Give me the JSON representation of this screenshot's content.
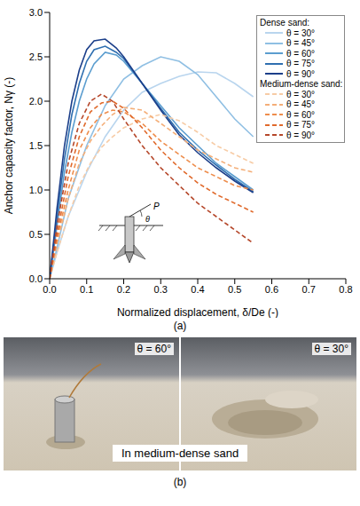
{
  "chart_data": {
    "type": "line",
    "y_label": "Anchor capacity factor, Nγ (-)",
    "x_label": "Normalized displacement, δ/De (-)",
    "xlim": [
      0,
      0.8
    ],
    "ylim": [
      0,
      3.0
    ],
    "xticks": [
      {
        "value": 0,
        "label": "0.0"
      },
      {
        "value": 0.1,
        "label": "0.1"
      },
      {
        "value": 0.2,
        "label": "0.2"
      },
      {
        "value": 0.3,
        "label": "0.3"
      },
      {
        "value": 0.4,
        "label": "0.4"
      },
      {
        "value": 0.5,
        "label": "0.5"
      },
      {
        "value": 0.6,
        "label": "0.6"
      },
      {
        "value": 0.7,
        "label": "0.7"
      },
      {
        "value": 0.8,
        "label": "0.8"
      }
    ],
    "yticks": [
      {
        "value": 0,
        "label": "0.0"
      },
      {
        "value": 0.5,
        "label": "0.5"
      },
      {
        "value": 1,
        "label": "1.0"
      },
      {
        "value": 1.5,
        "label": "1.5"
      },
      {
        "value": 2,
        "label": "2.0"
      },
      {
        "value": 2.5,
        "label": "2.5"
      },
      {
        "value": 3,
        "label": "3.0"
      }
    ],
    "grid": false,
    "legend": "upper right",
    "series": [
      {
        "group": "Dense sand:",
        "name": "θ = 30°",
        "color": "#b9d5ee",
        "line_style": "solid",
        "x": [
          0,
          0.02,
          0.05,
          0.1,
          0.15,
          0.2,
          0.25,
          0.3,
          0.35,
          0.4,
          0.45,
          0.5,
          0.55
        ],
        "values": [
          0,
          0.3,
          0.7,
          1.2,
          1.6,
          1.9,
          2.1,
          2.2,
          2.28,
          2.33,
          2.32,
          2.2,
          2.05
        ]
      },
      {
        "group": "Dense sand:",
        "name": "θ = 45°",
        "color": "#8fbfe3",
        "line_style": "solid",
        "x": [
          0,
          0.02,
          0.05,
          0.1,
          0.15,
          0.2,
          0.25,
          0.3,
          0.35,
          0.4,
          0.45,
          0.5,
          0.55
        ],
        "values": [
          0,
          0.35,
          0.9,
          1.5,
          1.95,
          2.25,
          2.4,
          2.5,
          2.45,
          2.3,
          2.05,
          1.8,
          1.6
        ]
      },
      {
        "group": "Dense sand:",
        "name": "θ = 60°",
        "color": "#5b9dcf",
        "line_style": "solid",
        "x": [
          0,
          0.02,
          0.04,
          0.06,
          0.08,
          0.1,
          0.12,
          0.15,
          0.18,
          0.2,
          0.25,
          0.3,
          0.35,
          0.4,
          0.45,
          0.5,
          0.55
        ],
        "values": [
          0,
          0.6,
          1.2,
          1.65,
          2.0,
          2.25,
          2.42,
          2.55,
          2.52,
          2.45,
          2.2,
          1.95,
          1.7,
          1.5,
          1.3,
          1.15,
          1.0
        ]
      },
      {
        "group": "Dense sand:",
        "name": "θ = 75°",
        "color": "#2f6fb0",
        "line_style": "solid",
        "x": [
          0,
          0.02,
          0.04,
          0.06,
          0.08,
          0.1,
          0.12,
          0.15,
          0.18,
          0.2,
          0.25,
          0.3,
          0.35,
          0.4,
          0.45,
          0.5,
          0.55
        ],
        "values": [
          0,
          0.7,
          1.35,
          1.85,
          2.2,
          2.45,
          2.58,
          2.62,
          2.55,
          2.48,
          2.2,
          1.92,
          1.65,
          1.45,
          1.28,
          1.12,
          0.98
        ]
      },
      {
        "group": "Dense sand:",
        "name": "θ = 90°",
        "color": "#1c3f8a",
        "line_style": "solid",
        "x": [
          0,
          0.02,
          0.04,
          0.06,
          0.08,
          0.1,
          0.12,
          0.15,
          0.18,
          0.2,
          0.25,
          0.3,
          0.35,
          0.4,
          0.45,
          0.5,
          0.55
        ],
        "values": [
          0,
          0.8,
          1.5,
          2.0,
          2.35,
          2.58,
          2.68,
          2.7,
          2.6,
          2.5,
          2.2,
          1.9,
          1.62,
          1.42,
          1.25,
          1.1,
          0.97
        ]
      },
      {
        "group": "Medium-dense sand:",
        "name": "θ = 30°",
        "color": "#f7cca6",
        "line_style": "dashed",
        "x": [
          0,
          0.02,
          0.05,
          0.08,
          0.11,
          0.14,
          0.17,
          0.2,
          0.25,
          0.3,
          0.35,
          0.4,
          0.45,
          0.5,
          0.55
        ],
        "values": [
          0,
          0.3,
          0.7,
          1.05,
          1.3,
          1.48,
          1.6,
          1.7,
          1.8,
          1.85,
          1.78,
          1.65,
          1.5,
          1.4,
          1.3
        ]
      },
      {
        "group": "Medium-dense sand:",
        "name": "θ = 45°",
        "color": "#f4ae78",
        "line_style": "dashed",
        "x": [
          0,
          0.02,
          0.05,
          0.08,
          0.11,
          0.14,
          0.17,
          0.2,
          0.25,
          0.3,
          0.35,
          0.4,
          0.45,
          0.5,
          0.55
        ],
        "values": [
          0,
          0.4,
          0.9,
          1.3,
          1.55,
          1.72,
          1.85,
          1.93,
          1.9,
          1.75,
          1.6,
          1.45,
          1.35,
          1.25,
          1.2
        ]
      },
      {
        "group": "Medium-dense sand:",
        "name": "θ = 60°",
        "color": "#ee8d4c",
        "line_style": "dashed",
        "x": [
          0,
          0.02,
          0.05,
          0.08,
          0.11,
          0.14,
          0.17,
          0.2,
          0.25,
          0.3,
          0.35,
          0.4,
          0.45,
          0.5,
          0.55
        ],
        "values": [
          0,
          0.45,
          1.0,
          1.45,
          1.7,
          1.85,
          1.9,
          1.88,
          1.75,
          1.55,
          1.4,
          1.25,
          1.15,
          1.05,
          1.0
        ]
      },
      {
        "group": "Medium-dense sand:",
        "name": "θ = 75°",
        "color": "#e06a2c",
        "line_style": "dashed",
        "x": [
          0,
          0.02,
          0.05,
          0.08,
          0.11,
          0.14,
          0.17,
          0.2,
          0.25,
          0.3,
          0.35,
          0.4,
          0.45,
          0.5,
          0.55
        ],
        "values": [
          0,
          0.5,
          1.15,
          1.6,
          1.88,
          1.98,
          2.0,
          1.92,
          1.7,
          1.45,
          1.25,
          1.08,
          0.95,
          0.85,
          0.75
        ]
      },
      {
        "group": "Medium-dense sand:",
        "name": "θ = 90°",
        "color": "#b5472a",
        "line_style": "dashed",
        "x": [
          0,
          0.02,
          0.05,
          0.08,
          0.11,
          0.14,
          0.17,
          0.2,
          0.25,
          0.3,
          0.35,
          0.4,
          0.45,
          0.5,
          0.55
        ],
        "values": [
          0,
          0.6,
          1.3,
          1.75,
          2.0,
          2.08,
          2.0,
          1.8,
          1.5,
          1.25,
          1.05,
          0.85,
          0.7,
          0.55,
          0.4
        ]
      }
    ]
  },
  "figure": {
    "panel_a_label": "(a)",
    "inset": {
      "load_label": "P",
      "angle_label": "θ"
    },
    "photos": {
      "labels": [
        "θ = 60°",
        "θ = 30°"
      ],
      "caption": "In medium-dense sand",
      "panel_label": "(b)"
    }
  }
}
